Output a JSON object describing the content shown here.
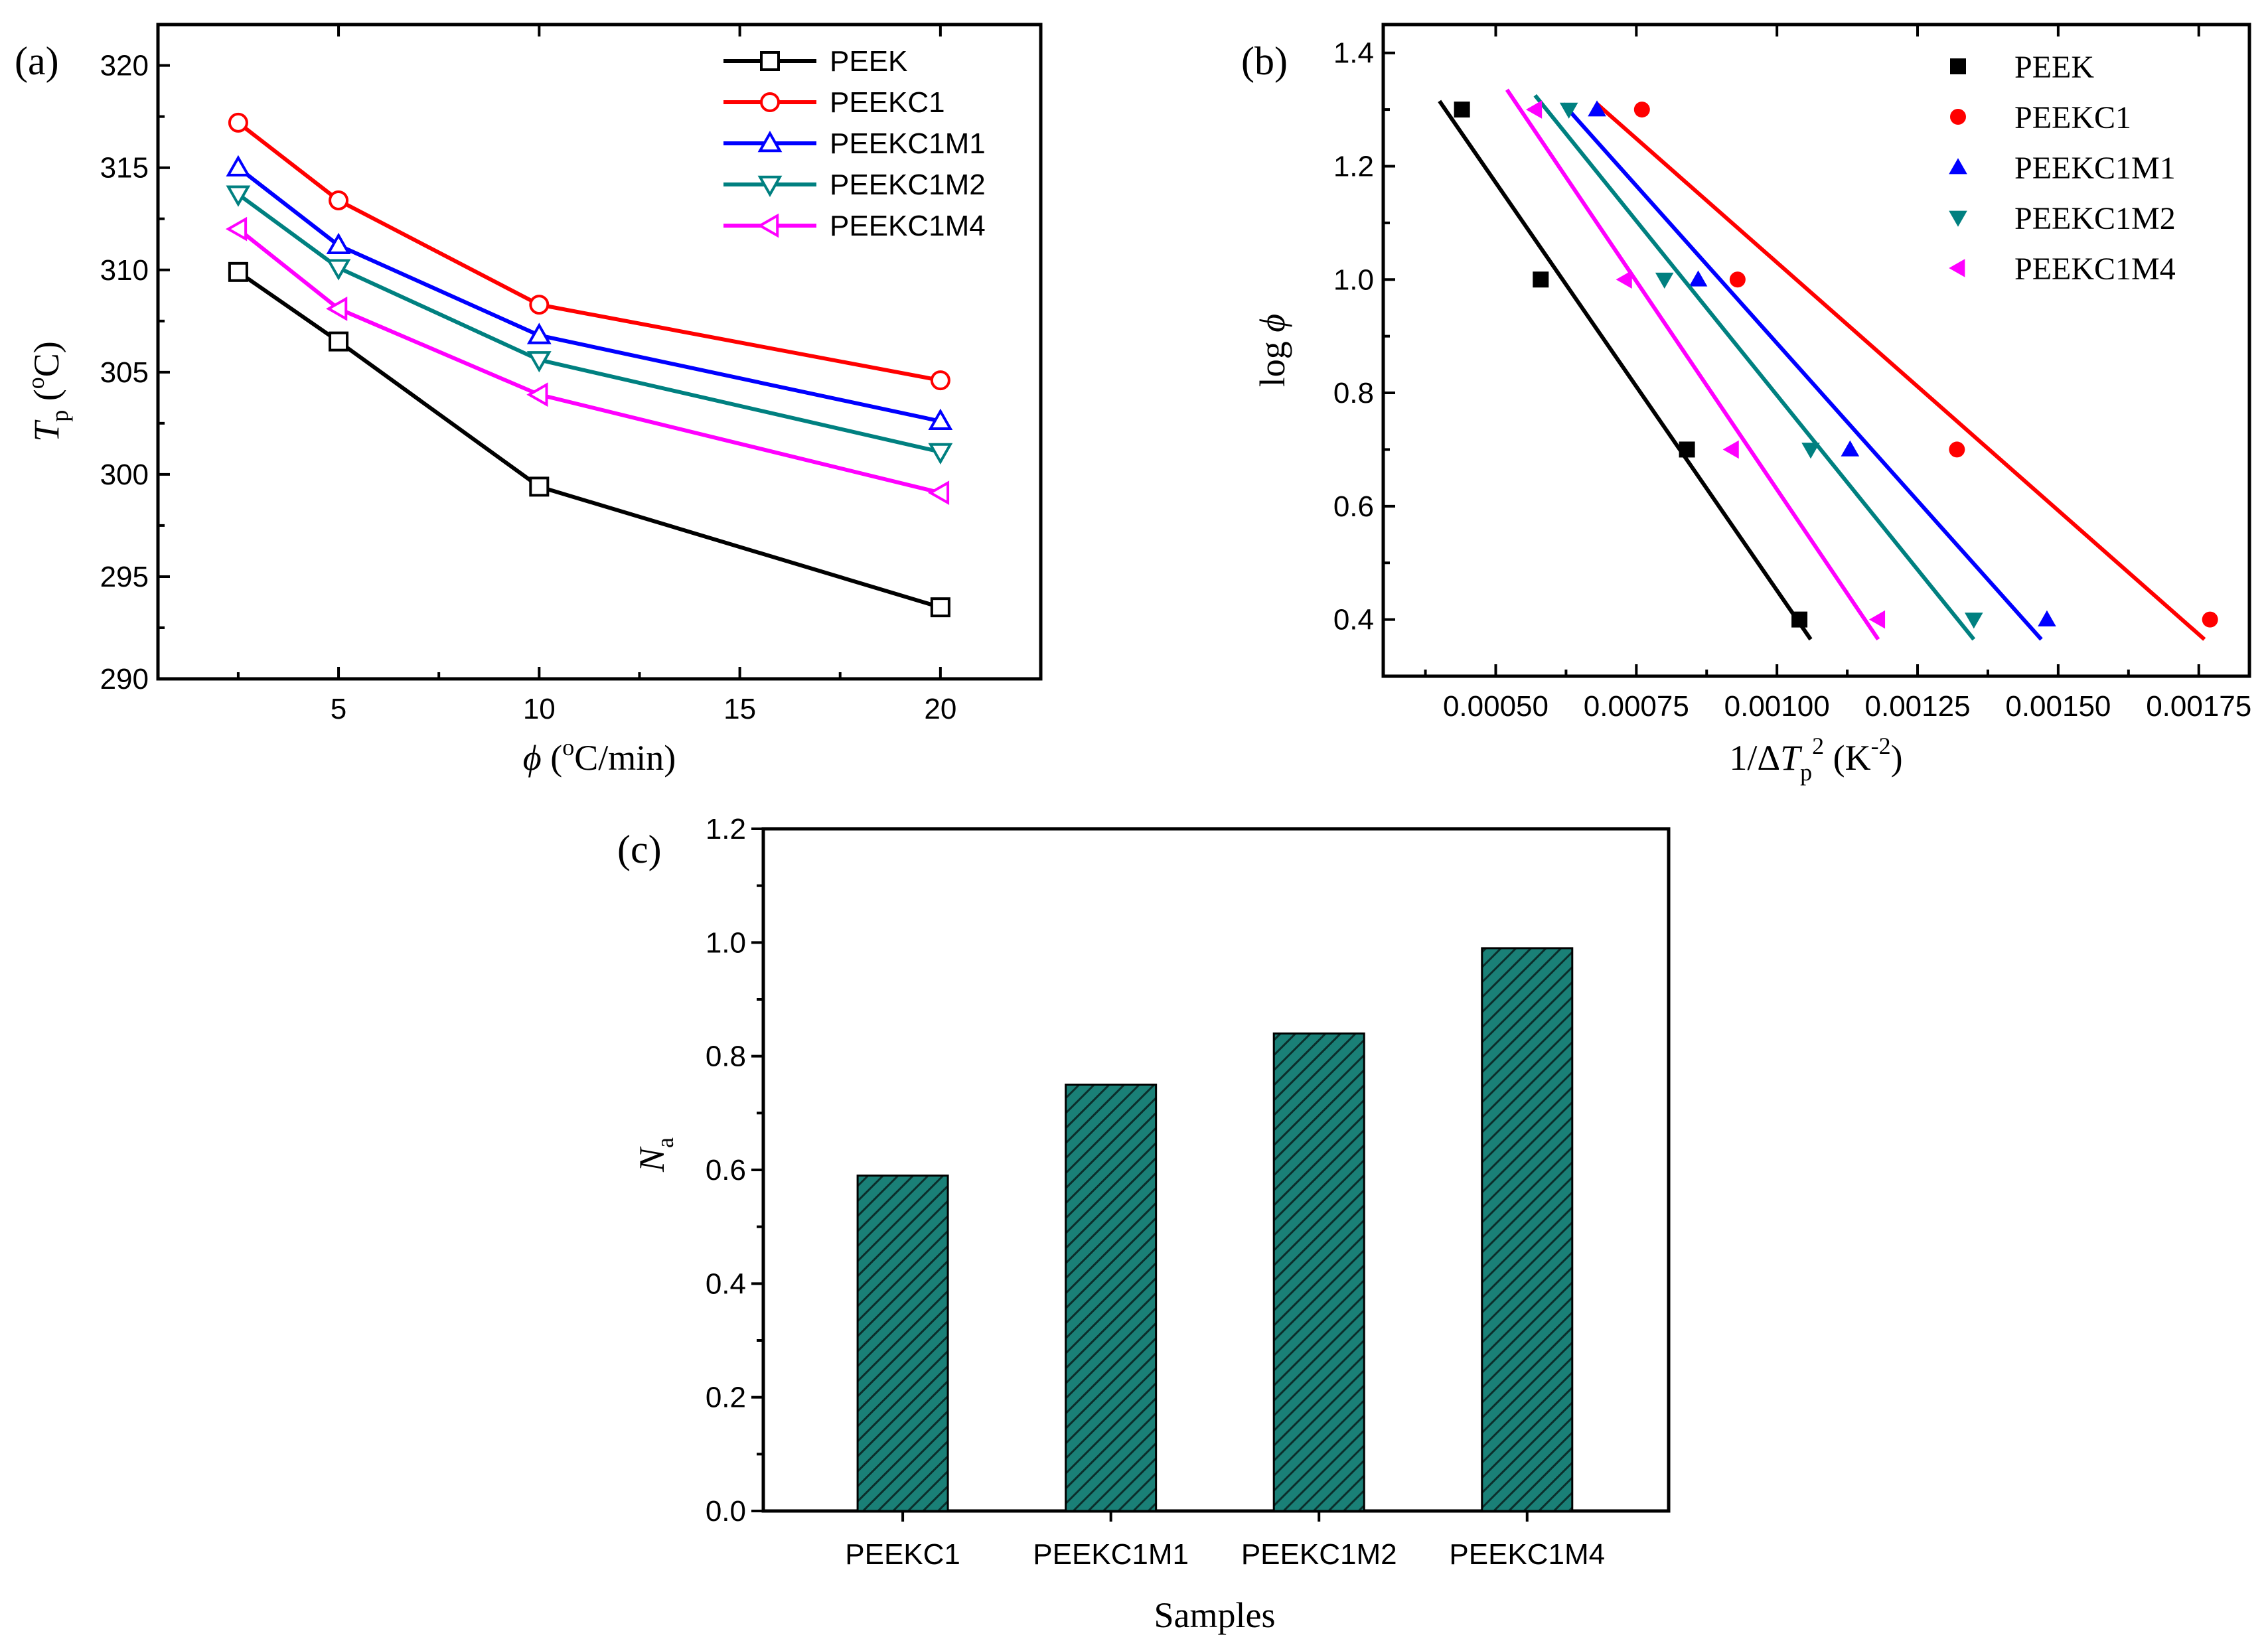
{
  "chart_data": [
    {
      "panel": "(a)",
      "type": "line",
      "xlabel": "ϕ (°C/min)",
      "ylabel": "Tp (°C)",
      "x_ticks": [
        5,
        10,
        15,
        20
      ],
      "y_ticks": [
        290,
        295,
        300,
        305,
        310,
        315,
        320
      ],
      "xlim": [
        0.5,
        22.5
      ],
      "ylim": [
        290,
        322
      ],
      "x": [
        2.5,
        5,
        10,
        20
      ],
      "series": [
        {
          "name": "PEEK",
          "color": "#000000",
          "marker": "square-open",
          "values": [
            309.9,
            306.5,
            299.4,
            293.5
          ]
        },
        {
          "name": "PEEKC1",
          "color": "#ff0000",
          "marker": "circle-open",
          "values": [
            317.2,
            313.4,
            308.3,
            304.6
          ]
        },
        {
          "name": "PEEKC1M1",
          "color": "#0000ff",
          "marker": "triangle-up-open",
          "values": [
            315.0,
            311.2,
            306.8,
            302.6
          ]
        },
        {
          "name": "PEEKC1M2",
          "color": "#008080",
          "marker": "triangle-down-open",
          "values": [
            313.7,
            310.1,
            305.6,
            301.1
          ]
        },
        {
          "name": "PEEKC1M4",
          "color": "#ff00ff",
          "marker": "triangle-left-open",
          "values": [
            312.0,
            308.1,
            303.9,
            299.1
          ]
        }
      ],
      "legend": "top-right"
    },
    {
      "panel": "(b)",
      "type": "scatter",
      "xlabel": "1/ΔTp² (K⁻²)",
      "ylabel": "log ϕ",
      "x_ticks": [
        0.0005,
        0.00075,
        0.001,
        0.00125,
        0.0015,
        0.00175
      ],
      "x_tick_labels": [
        "0.00050",
        "0.00075",
        "0.00100",
        "0.00125",
        "0.00150",
        "0.00175"
      ],
      "y_ticks": [
        0.4,
        0.6,
        0.8,
        1.0,
        1.2,
        1.4
      ],
      "y_tick_labels": [
        "0.4",
        "0.6",
        "0.8",
        "1.0",
        "1.2",
        "1.4"
      ],
      "xlim": [
        0.0003,
        0.00184
      ],
      "ylim": [
        0.3,
        1.45
      ],
      "y": [
        1.3,
        1.0,
        0.7,
        0.4
      ],
      "series": [
        {
          "name": "PEEK",
          "color": "#000000",
          "marker": "square",
          "x": [
            0.00044,
            0.00058,
            0.00084,
            0.00104
          ],
          "fit": [
            [
              0.0004,
              1.315
            ],
            [
              0.00106,
              0.365
            ]
          ]
        },
        {
          "name": "PEEKC1",
          "color": "#ff0000",
          "marker": "circle",
          "x": [
            0.00076,
            0.00093,
            0.00132,
            0.00177
          ],
          "fit": [
            [
              0.00068,
              1.31
            ],
            [
              0.00176,
              0.365
            ]
          ]
        },
        {
          "name": "PEEKC1M1",
          "color": "#0000ff",
          "marker": "triangle-up",
          "x": [
            0.00068,
            0.00086,
            0.00113,
            0.00148
          ],
          "fit": [
            [
              0.00062,
              1.31
            ],
            [
              0.00147,
              0.365
            ]
          ]
        },
        {
          "name": "PEEKC1M2",
          "color": "#008080",
          "marker": "triangle-down",
          "x": [
            0.00063,
            0.0008,
            0.00106,
            0.00135
          ],
          "fit": [
            [
              0.00057,
              1.325
            ],
            [
              0.00135,
              0.365
            ]
          ]
        },
        {
          "name": "PEEKC1M4",
          "color": "#ff00ff",
          "marker": "triangle-left",
          "x": [
            0.00057,
            0.00073,
            0.00092,
            0.00118
          ],
          "fit": [
            [
              0.00052,
              1.335
            ],
            [
              0.00118,
              0.365
            ]
          ]
        }
      ],
      "legend": "top-right"
    },
    {
      "panel": "(c)",
      "type": "bar",
      "xlabel": "Samples",
      "ylabel": "Na",
      "categories": [
        "PEEKC1",
        "PEEKC1M1",
        "PEEKC1M2",
        "PEEKC1M4"
      ],
      "values": [
        0.59,
        0.75,
        0.84,
        0.99
      ],
      "y_ticks": [
        0.0,
        0.2,
        0.4,
        0.6,
        0.8,
        1.0,
        1.2
      ],
      "y_tick_labels": [
        "0.0",
        "0.2",
        "0.4",
        "0.6",
        "0.8",
        "1.0",
        "1.2"
      ],
      "ylim": [
        0,
        1.2
      ],
      "bar_color": "#1a8077",
      "hatch": "diagonal"
    }
  ]
}
